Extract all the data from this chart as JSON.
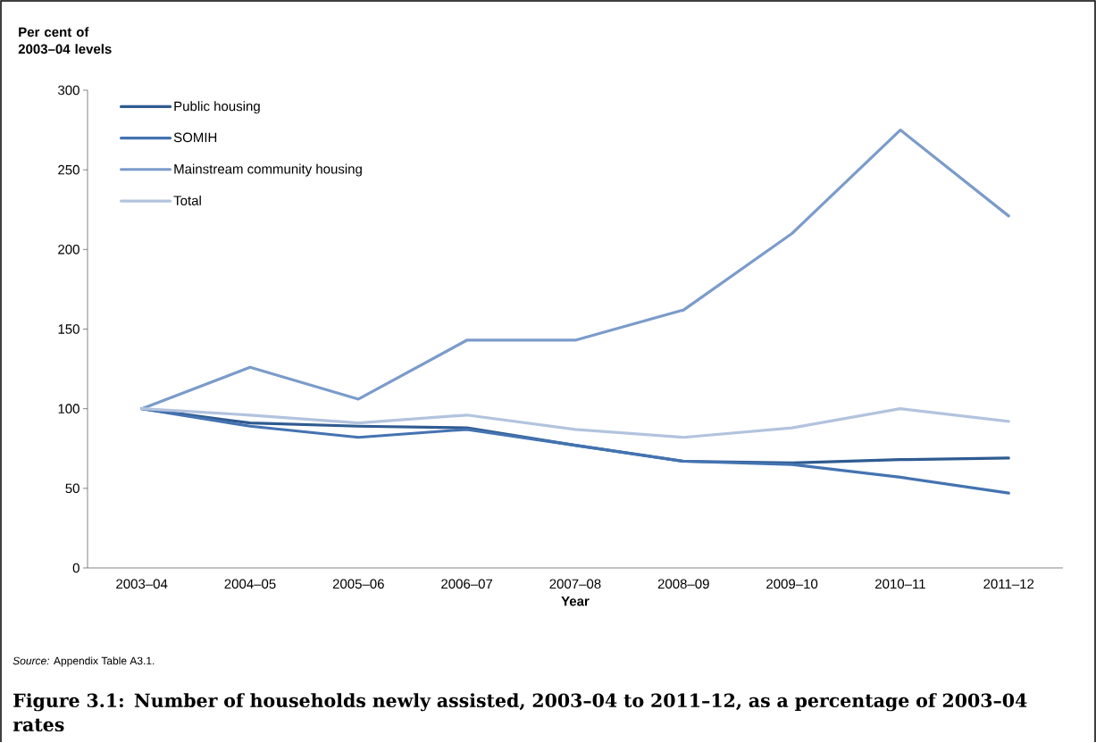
{
  "chart_data": {
    "type": "line",
    "title": "Figure 3.1: Number of households newly assisted, 2003–04 to 2011–12, as a percentage of 2003–04 rates",
    "xlabel": "Year",
    "ylabel": "Per cent of 2003–04 levels",
    "annotations": [
      "*Source:* Appendix Table A3.1."
    ],
    "categories": [
      "2003–04",
      "2004–05",
      "2005–06",
      "2006–07",
      "2007–08",
      "2008–09",
      "2009–10",
      "2010–11",
      "2011–12"
    ],
    "series": [
      {
        "name": "Public housing",
        "color": "#2f5b91",
        "values": [
          100,
          91,
          89,
          88,
          77,
          67,
          66,
          68,
          69
        ]
      },
      {
        "name": "SOMIH",
        "color": "#4473b1",
        "values": [
          100,
          89,
          82,
          87,
          77,
          67,
          65,
          57,
          47
        ]
      },
      {
        "name": "Mainstream community housing",
        "color": "#7b9bca",
        "values": [
          100,
          126,
          106,
          143,
          143,
          162,
          210,
          275,
          221
        ]
      },
      {
        "name": "Total",
        "color": "#b3c3de",
        "values": [
          100,
          96,
          91,
          96,
          87,
          82,
          88,
          100,
          92
        ]
      }
    ],
    "ylim": [
      0,
      300
    ],
    "yticks": [
      0,
      50,
      100,
      150,
      200,
      250,
      300
    ],
    "grid": false,
    "legend": "top left",
    "marker": "none",
    "line_style": "solid"
  }
}
